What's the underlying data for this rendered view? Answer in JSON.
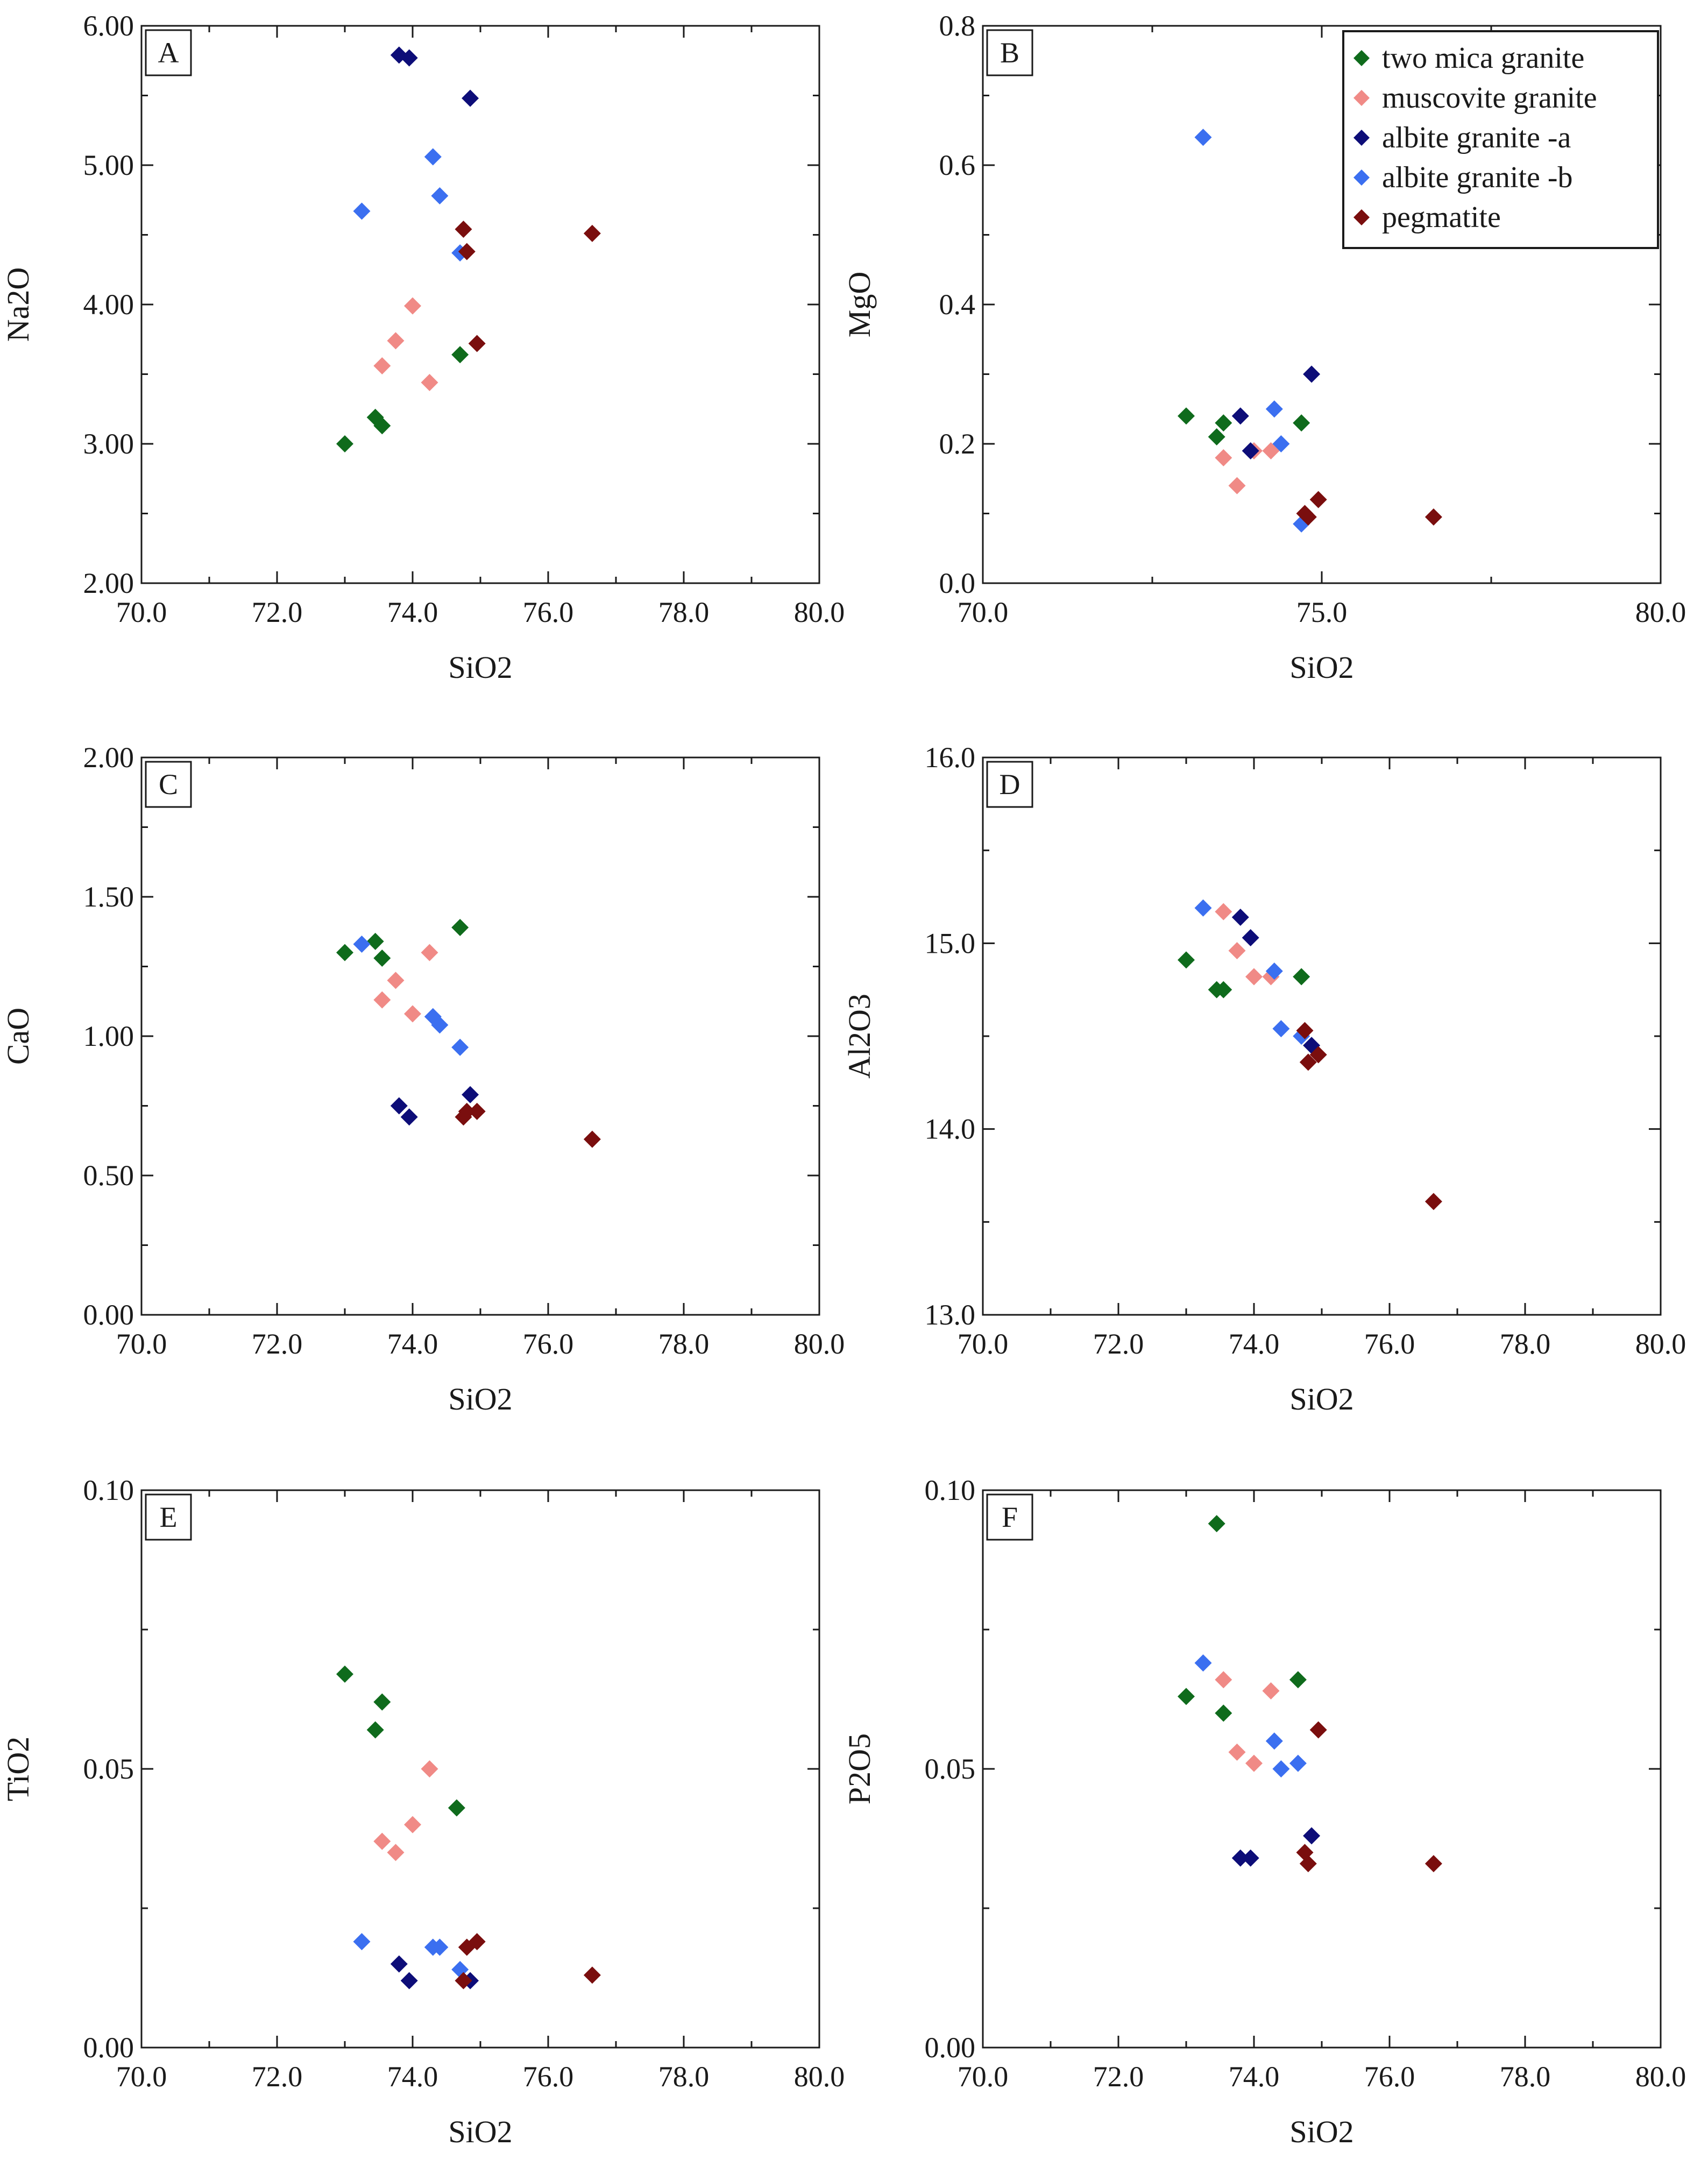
{
  "colors": {
    "two_mica_granite": "#0f6b1c",
    "muscovite_granite": "#f08a86",
    "albite_granite_a": "#0d0d78",
    "albite_granite_b": "#3b6ff0",
    "pegmatite": "#7a0e0e"
  },
  "legend": [
    {
      "key": "two_mica_granite",
      "label": "two mica granite"
    },
    {
      "key": "muscovite_granite",
      "label": "muscovite granite"
    },
    {
      "key": "albite_granite_a",
      "label": "albite granite -a"
    },
    {
      "key": "albite_granite_b",
      "label": "albite granite -b"
    },
    {
      "key": "pegmatite",
      "label": "pegmatite"
    }
  ],
  "chart_data": [
    {
      "type": "scatter",
      "panel": "A",
      "xlabel": "SiO2",
      "ylabel": "Na2O",
      "xlim": [
        70,
        80
      ],
      "ylim": [
        2,
        6
      ],
      "xticks": [
        "70.0",
        "72.0",
        "74.0",
        "76.0",
        "78.0",
        "80.0"
      ],
      "yticks": [
        "2.00",
        "3.00",
        "4.00",
        "5.00",
        "6.00"
      ],
      "series": [
        {
          "name": "two mica granite",
          "key": "two_mica_granite",
          "points": [
            [
              73.0,
              3.0
            ],
            [
              73.45,
              3.19
            ],
            [
              73.55,
              3.13
            ],
            [
              74.7,
              3.64
            ]
          ]
        },
        {
          "name": "muscovite granite",
          "key": "muscovite_granite",
          "points": [
            [
              73.55,
              3.56
            ],
            [
              73.75,
              3.74
            ],
            [
              74.0,
              3.99
            ],
            [
              74.25,
              3.44
            ]
          ]
        },
        {
          "name": "albite granite -a",
          "key": "albite_granite_a",
          "points": [
            [
              73.8,
              5.79
            ],
            [
              73.95,
              5.77
            ],
            [
              74.85,
              5.48
            ]
          ]
        },
        {
          "name": "albite granite -b",
          "key": "albite_granite_b",
          "points": [
            [
              73.25,
              4.67
            ],
            [
              74.3,
              5.06
            ],
            [
              74.4,
              4.78
            ],
            [
              74.7,
              4.37
            ]
          ]
        },
        {
          "name": "pegmatite",
          "key": "pegmatite",
          "points": [
            [
              74.75,
              4.54
            ],
            [
              74.8,
              4.38
            ],
            [
              74.95,
              3.72
            ],
            [
              76.65,
              4.51
            ]
          ]
        }
      ]
    },
    {
      "type": "scatter",
      "panel": "B",
      "xlabel": "SiO2",
      "ylabel": "MgO",
      "xlim": [
        70,
        80
      ],
      "ylim": [
        0,
        0.8
      ],
      "xticks": [
        "70.0",
        "75.0",
        "80.0"
      ],
      "yticks": [
        "0.0",
        "0.2",
        "0.4",
        "0.6",
        "0.8"
      ],
      "series": [
        {
          "name": "two mica granite",
          "key": "two_mica_granite",
          "points": [
            [
              73.0,
              0.24
            ],
            [
              73.45,
              0.21
            ],
            [
              73.55,
              0.23
            ],
            [
              74.7,
              0.23
            ]
          ]
        },
        {
          "name": "muscovite granite",
          "key": "muscovite_granite",
          "points": [
            [
              73.55,
              0.18
            ],
            [
              73.75,
              0.14
            ],
            [
              74.0,
              0.19
            ],
            [
              74.25,
              0.19
            ]
          ]
        },
        {
          "name": "albite granite -a",
          "key": "albite_granite_a",
          "points": [
            [
              73.8,
              0.24
            ],
            [
              73.95,
              0.19
            ],
            [
              74.85,
              0.3
            ]
          ]
        },
        {
          "name": "albite granite -b",
          "key": "albite_granite_b",
          "points": [
            [
              73.25,
              0.64
            ],
            [
              74.3,
              0.25
            ],
            [
              74.4,
              0.2
            ],
            [
              74.7,
              0.085
            ]
          ]
        },
        {
          "name": "pegmatite",
          "key": "pegmatite",
          "points": [
            [
              74.75,
              0.1
            ],
            [
              74.8,
              0.095
            ],
            [
              74.95,
              0.12
            ],
            [
              76.65,
              0.095
            ]
          ]
        }
      ]
    },
    {
      "type": "scatter",
      "panel": "C",
      "xlabel": "SiO2",
      "ylabel": "CaO",
      "xlim": [
        70,
        80
      ],
      "ylim": [
        0,
        2
      ],
      "xticks": [
        "70.0",
        "72.0",
        "74.0",
        "76.0",
        "78.0",
        "80.0"
      ],
      "yticks": [
        "0.00",
        "0.50",
        "1.00",
        "1.50",
        "2.00"
      ],
      "series": [
        {
          "name": "two mica granite",
          "key": "two_mica_granite",
          "points": [
            [
              73.0,
              1.3
            ],
            [
              73.45,
              1.34
            ],
            [
              73.55,
              1.28
            ],
            [
              74.7,
              1.39
            ]
          ]
        },
        {
          "name": "muscovite granite",
          "key": "muscovite_granite",
          "points": [
            [
              73.55,
              1.13
            ],
            [
              73.75,
              1.2
            ],
            [
              74.0,
              1.08
            ],
            [
              74.25,
              1.3
            ]
          ]
        },
        {
          "name": "albite granite -a",
          "key": "albite_granite_a",
          "points": [
            [
              73.8,
              0.75
            ],
            [
              73.95,
              0.71
            ],
            [
              74.85,
              0.79
            ]
          ]
        },
        {
          "name": "albite granite -b",
          "key": "albite_granite_b",
          "points": [
            [
              73.25,
              1.33
            ],
            [
              74.3,
              1.07
            ],
            [
              74.4,
              1.04
            ],
            [
              74.7,
              0.96
            ]
          ]
        },
        {
          "name": "pegmatite",
          "key": "pegmatite",
          "points": [
            [
              74.75,
              0.71
            ],
            [
              74.8,
              0.73
            ],
            [
              74.95,
              0.73
            ],
            [
              76.65,
              0.63
            ]
          ]
        }
      ]
    },
    {
      "type": "scatter",
      "panel": "D",
      "xlabel": "SiO2",
      "ylabel": "Al2O3",
      "xlim": [
        70,
        80
      ],
      "ylim": [
        13,
        16
      ],
      "xticks": [
        "70.0",
        "72.0",
        "74.0",
        "76.0",
        "78.0",
        "80.0"
      ],
      "yticks": [
        "13.0",
        "14.0",
        "15.0",
        "16.0"
      ],
      "series": [
        {
          "name": "two mica granite",
          "key": "two_mica_granite",
          "points": [
            [
              73.0,
              14.91
            ],
            [
              73.45,
              14.75
            ],
            [
              73.55,
              14.75
            ],
            [
              74.7,
              14.82
            ]
          ]
        },
        {
          "name": "muscovite granite",
          "key": "muscovite_granite",
          "points": [
            [
              73.55,
              15.17
            ],
            [
              73.75,
              14.96
            ],
            [
              74.0,
              14.82
            ],
            [
              74.25,
              14.82
            ]
          ]
        },
        {
          "name": "albite granite -a",
          "key": "albite_granite_a",
          "points": [
            [
              73.8,
              15.14
            ],
            [
              73.95,
              15.03
            ],
            [
              74.85,
              14.45
            ]
          ]
        },
        {
          "name": "albite granite -b",
          "key": "albite_granite_b",
          "points": [
            [
              73.25,
              15.19
            ],
            [
              74.3,
              14.85
            ],
            [
              74.4,
              14.54
            ],
            [
              74.7,
              14.5
            ]
          ]
        },
        {
          "name": "pegmatite",
          "key": "pegmatite",
          "points": [
            [
              74.75,
              14.53
            ],
            [
              74.8,
              14.36
            ],
            [
              74.95,
              14.4
            ],
            [
              76.65,
              13.61
            ]
          ]
        }
      ]
    },
    {
      "type": "scatter",
      "panel": "E",
      "xlabel": "SiO2",
      "ylabel": "TiO2",
      "xlim": [
        70,
        80
      ],
      "ylim": [
        0,
        0.1
      ],
      "xticks": [
        "70.0",
        "72.0",
        "74.0",
        "76.0",
        "78.0",
        "80.0"
      ],
      "yticks": [
        "0.00",
        "0.05",
        "0.10"
      ],
      "series": [
        {
          "name": "two mica granite",
          "key": "two_mica_granite",
          "points": [
            [
              73.0,
              0.067
            ],
            [
              73.45,
              0.057
            ],
            [
              73.55,
              0.062
            ],
            [
              74.65,
              0.043
            ]
          ]
        },
        {
          "name": "muscovite granite",
          "key": "muscovite_granite",
          "points": [
            [
              73.55,
              0.037
            ],
            [
              73.75,
              0.035
            ],
            [
              74.0,
              0.04
            ],
            [
              74.25,
              0.05
            ]
          ]
        },
        {
          "name": "albite granite -a",
          "key": "albite_granite_a",
          "points": [
            [
              73.8,
              0.015
            ],
            [
              73.95,
              0.012
            ],
            [
              74.85,
              0.012
            ]
          ]
        },
        {
          "name": "albite granite -b",
          "key": "albite_granite_b",
          "points": [
            [
              73.25,
              0.019
            ],
            [
              74.3,
              0.018
            ],
            [
              74.4,
              0.018
            ],
            [
              74.7,
              0.014
            ]
          ]
        },
        {
          "name": "pegmatite",
          "key": "pegmatite",
          "points": [
            [
              74.75,
              0.012
            ],
            [
              74.8,
              0.018
            ],
            [
              74.95,
              0.019
            ],
            [
              76.65,
              0.013
            ]
          ]
        }
      ]
    },
    {
      "type": "scatter",
      "panel": "F",
      "xlabel": "SiO2",
      "ylabel": "P2O5",
      "xlim": [
        70,
        80
      ],
      "ylim": [
        0,
        0.1
      ],
      "xticks": [
        "70.0",
        "72.0",
        "74.0",
        "76.0",
        "78.0",
        "80.0"
      ],
      "yticks": [
        "0.00",
        "0.05",
        "0.10"
      ],
      "series": [
        {
          "name": "two mica granite",
          "key": "two_mica_granite",
          "points": [
            [
              73.0,
              0.063
            ],
            [
              73.45,
              0.094
            ],
            [
              73.55,
              0.06
            ],
            [
              74.65,
              0.066
            ]
          ]
        },
        {
          "name": "muscovite granite",
          "key": "muscovite_granite",
          "points": [
            [
              73.55,
              0.066
            ],
            [
              73.75,
              0.053
            ],
            [
              74.0,
              0.051
            ],
            [
              74.25,
              0.064
            ]
          ]
        },
        {
          "name": "albite granite -a",
          "key": "albite_granite_a",
          "points": [
            [
              73.8,
              0.034
            ],
            [
              73.95,
              0.034
            ],
            [
              74.85,
              0.038
            ]
          ]
        },
        {
          "name": "albite granite -b",
          "key": "albite_granite_b",
          "points": [
            [
              73.25,
              0.069
            ],
            [
              74.3,
              0.055
            ],
            [
              74.4,
              0.05
            ],
            [
              74.65,
              0.051
            ]
          ]
        },
        {
          "name": "pegmatite",
          "key": "pegmatite",
          "points": [
            [
              74.75,
              0.035
            ],
            [
              74.8,
              0.033
            ],
            [
              74.95,
              0.057
            ],
            [
              76.65,
              0.033
            ]
          ]
        }
      ]
    }
  ]
}
